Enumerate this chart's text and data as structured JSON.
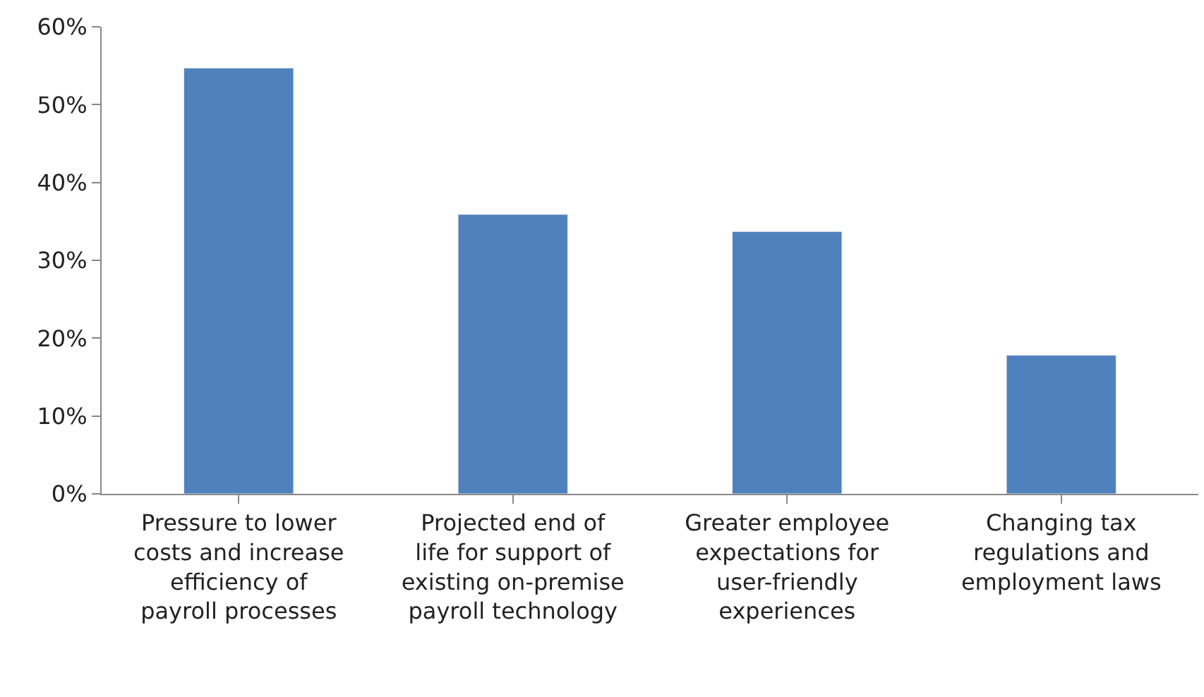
{
  "chart_data": {
    "type": "bar",
    "categories": [
      "Pressure to lower costs and increase efficiency of payroll processes",
      "Projected end of life for support of existing on-premise payroll technology",
      "Greater employee expectations for user-friendly experiences",
      "Changing tax regulations and employment laws"
    ],
    "values": [
      54.7,
      35.9,
      33.7,
      17.8
    ],
    "color": "#4f81bd",
    "ylim": [
      0,
      60
    ],
    "yticks": [
      {
        "value": 0,
        "label": "0%"
      },
      {
        "value": 10,
        "label": "10%"
      },
      {
        "value": 20,
        "label": "20%"
      },
      {
        "value": 30,
        "label": "30%"
      },
      {
        "value": 40,
        "label": "40%"
      },
      {
        "value": 50,
        "label": "50%"
      },
      {
        "value": 60,
        "label": "60%"
      }
    ]
  }
}
